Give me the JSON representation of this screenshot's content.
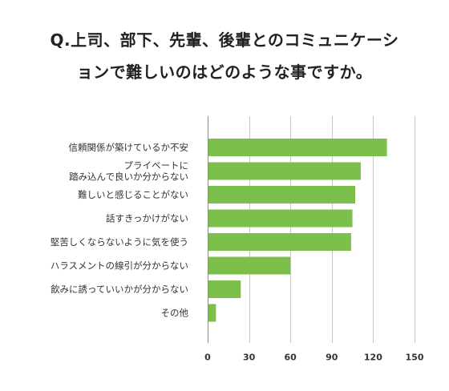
{
  "header": {
    "title_line1": "Q.上司、部下、先輩、後輩とのコミュニケーシ",
    "title_line2": "ョンで難しいのはどのような事ですか。"
  },
  "chart_data": {
    "type": "bar",
    "orientation": "horizontal",
    "categories": [
      [
        "信頼関係が築けているか不安"
      ],
      [
        "プライベートに",
        "踏み込んで良いか分からない"
      ],
      [
        "難しいと感じることがない"
      ],
      [
        "話すきっかけがない"
      ],
      [
        "堅苦しくならないように気を使う"
      ],
      [
        "ハラスメントの線引が分からない"
      ],
      [
        "飲みに誘っていいかが分からない"
      ],
      [
        "その他"
      ]
    ],
    "values": [
      130,
      111,
      107,
      105,
      104,
      60,
      24,
      6
    ],
    "xlim": [
      0,
      150
    ],
    "xticks": [
      "0",
      "30",
      "60",
      "90",
      "120",
      "150"
    ],
    "grid": true,
    "bar_color": "#7cc04b",
    "grid_color": "#c8c8c8",
    "axis_color": "#888888"
  }
}
